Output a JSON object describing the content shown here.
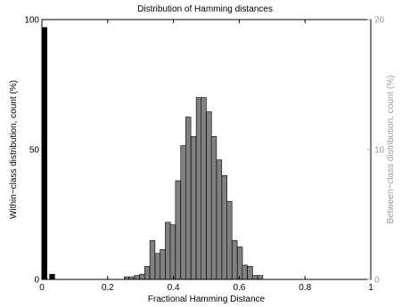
{
  "chart_data": {
    "type": "bar",
    "title": "Distribution of Hamming distances",
    "xlabel": "Fractional Hamming Distance",
    "ylabel_left": "Within−class distribution, count (%)",
    "ylabel_right": "Between−class distribution, count (%)",
    "xlim": [
      0,
      1
    ],
    "ylim_left": [
      0,
      100
    ],
    "ylim_right": [
      0,
      20
    ],
    "x_ticks": [
      "0",
      "0.2",
      "0.4",
      "0.6",
      "0.8",
      "1"
    ],
    "x_tick_values": [
      0,
      0.2,
      0.4,
      0.6,
      0.8,
      1
    ],
    "y_ticks_left": [
      "0",
      "50",
      "100"
    ],
    "y_tick_values_left": [
      0,
      50,
      100
    ],
    "y_ticks_right": [
      "0",
      "10",
      "20"
    ],
    "y_tick_values_right": [
      0,
      10,
      20
    ],
    "grid": false,
    "bin_width": 0.0156,
    "series": [
      {
        "name": "Within-class",
        "axis": "left",
        "color": "#000000",
        "x": [
          0.0078,
          0.0312
        ],
        "values": [
          97,
          2
        ]
      },
      {
        "name": "Between-class",
        "axis": "right",
        "color": "#808080",
        "x": [
          0.258,
          0.273,
          0.289,
          0.305,
          0.32,
          0.336,
          0.352,
          0.367,
          0.383,
          0.398,
          0.414,
          0.43,
          0.445,
          0.461,
          0.477,
          0.492,
          0.508,
          0.523,
          0.539,
          0.555,
          0.57,
          0.586,
          0.602,
          0.617,
          0.633,
          0.648,
          0.664
        ],
        "values": [
          0.2,
          0.2,
          0.3,
          0.4,
          1.0,
          3.0,
          2.0,
          2.3,
          4.4,
          4.2,
          7.6,
          10.3,
          12.5,
          11.0,
          14.0,
          14.0,
          12.9,
          11.0,
          9.2,
          8.0,
          6.0,
          3.0,
          2.5,
          1.1,
          1.0,
          0.3,
          0.3
        ]
      }
    ]
  }
}
